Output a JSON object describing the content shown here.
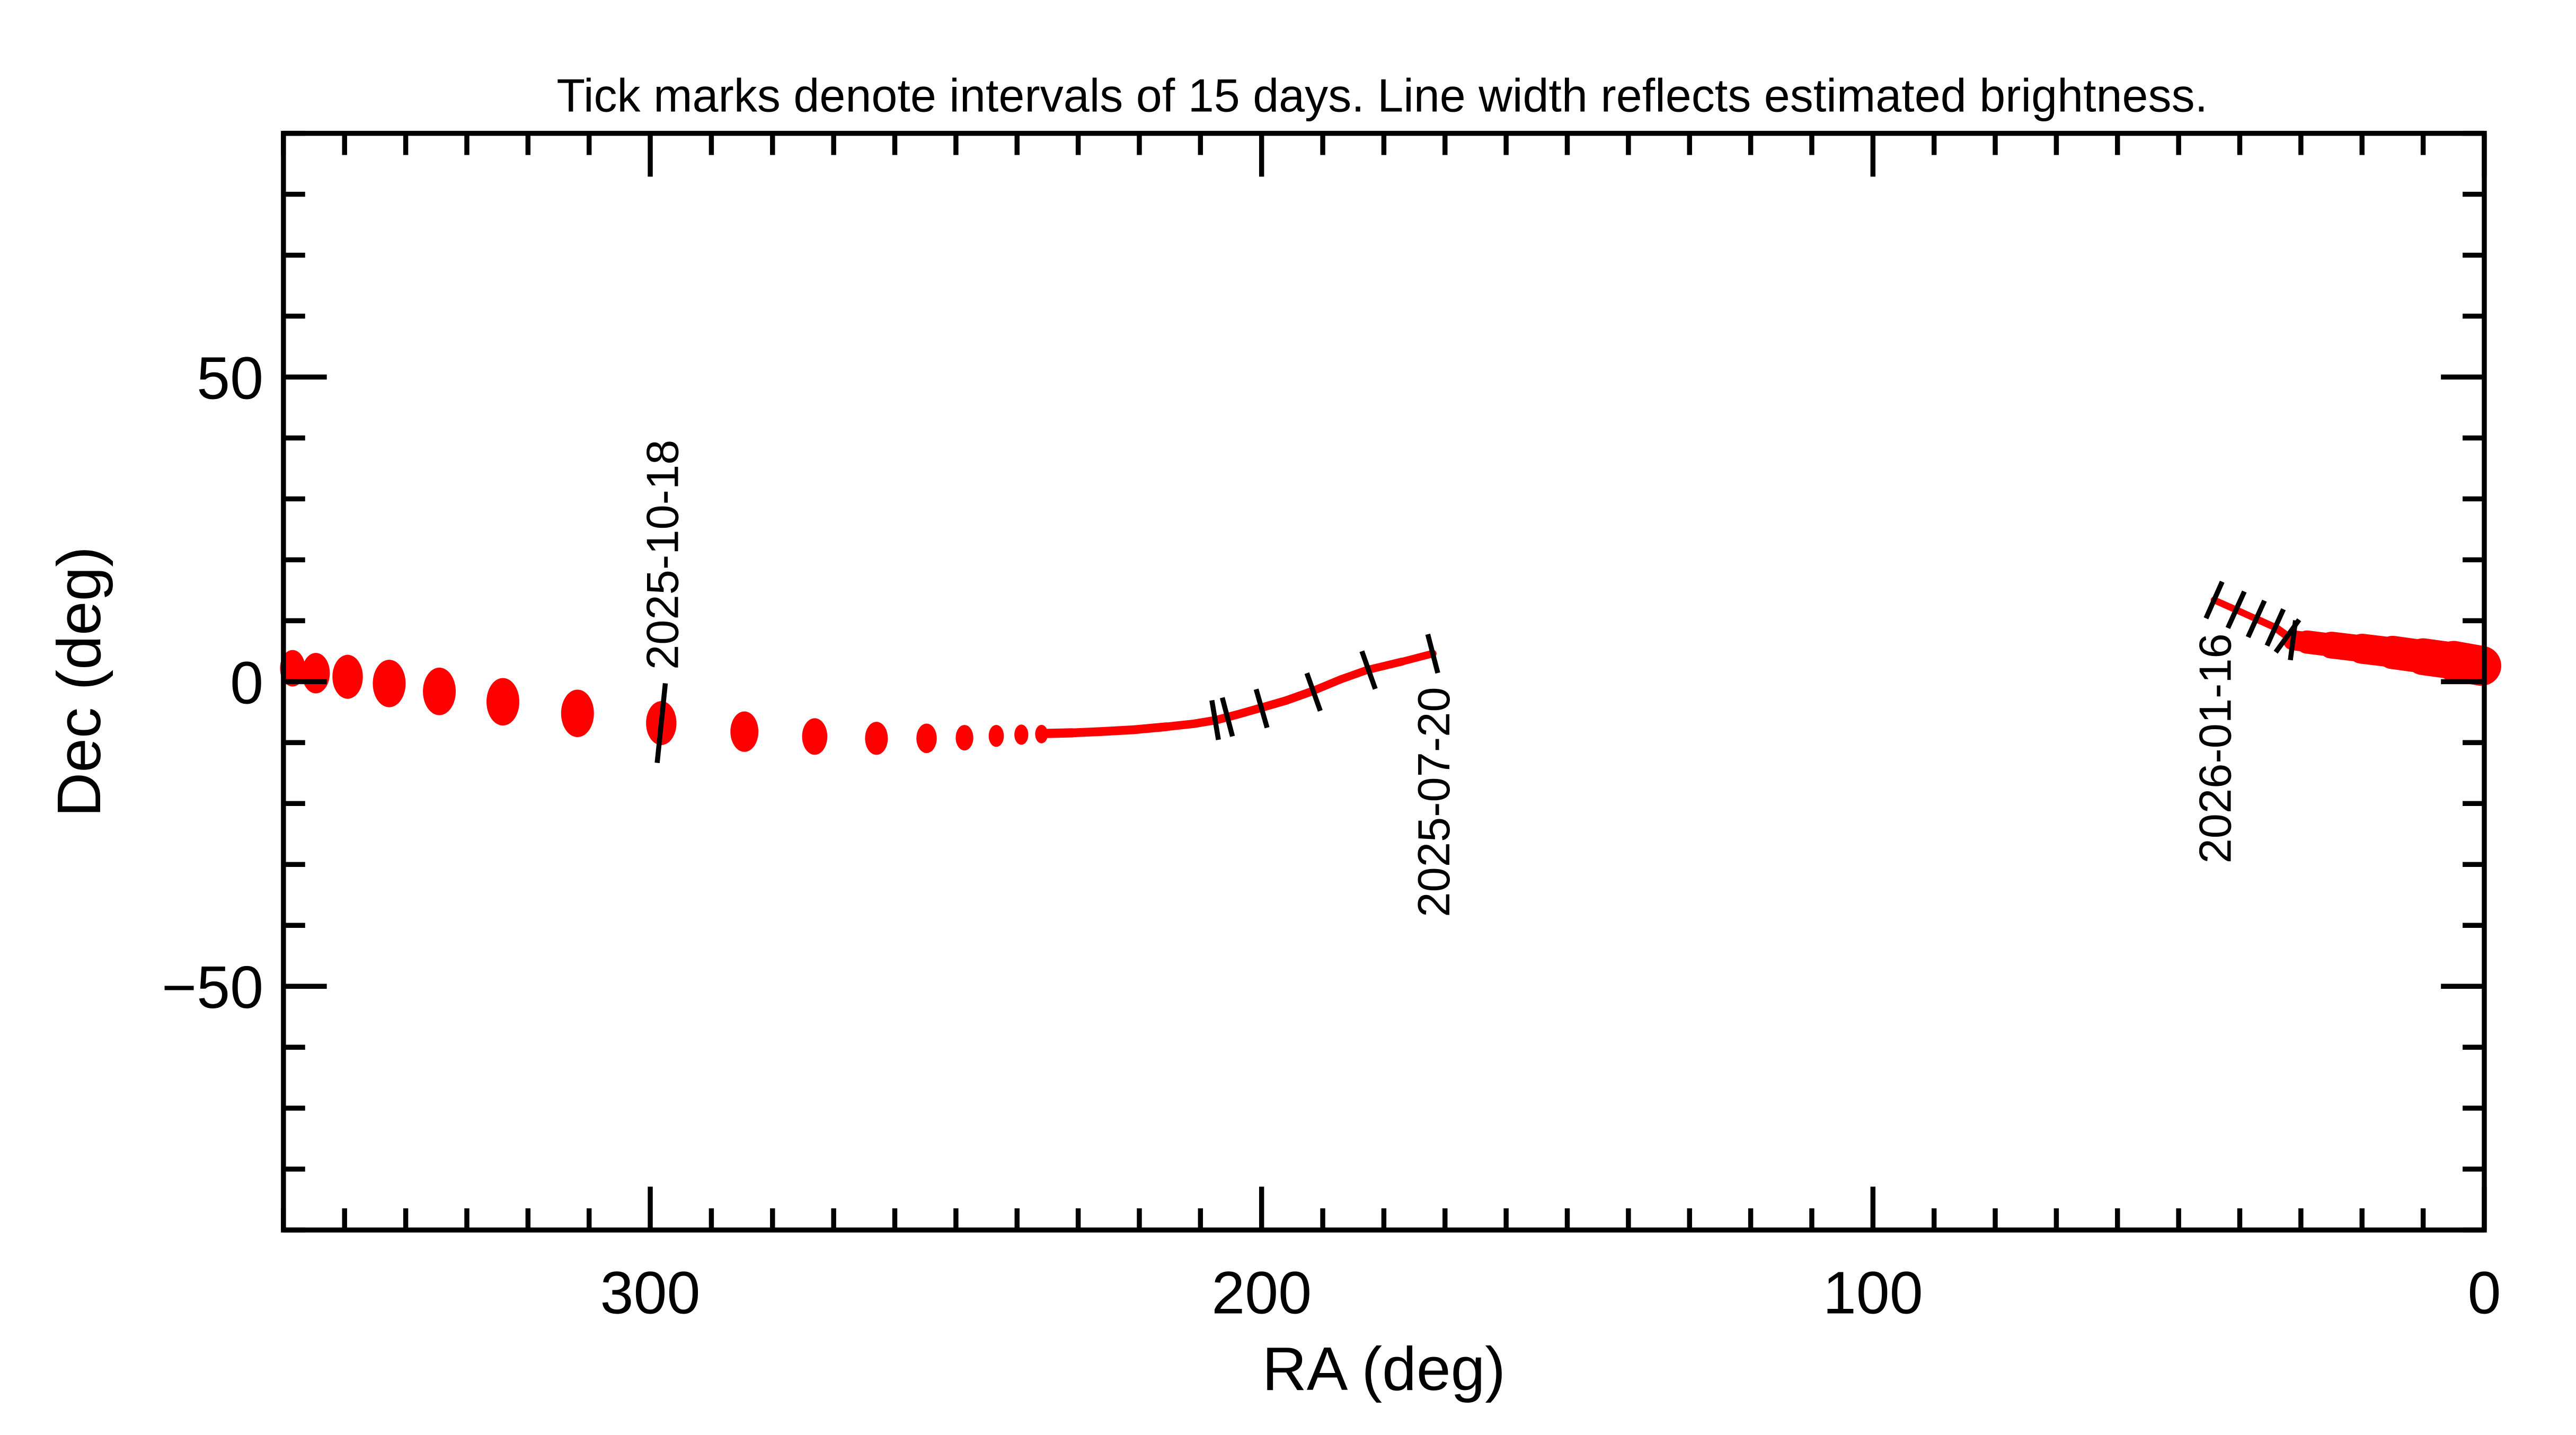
{
  "chart_data": {
    "type": "line",
    "title": "Tick marks denote intervals of 15 days.  Line width reflects estimated brightness.",
    "xlabel": "RA (deg)",
    "ylabel": "Dec (deg)",
    "xlim": [
      360,
      0
    ],
    "ylim": [
      -90,
      90
    ],
    "x_ticks": [
      300,
      200,
      100,
      0
    ],
    "x_tick_labels": [
      "300",
      "200",
      "100",
      "0"
    ],
    "y_ticks": [
      50,
      0,
      -50
    ],
    "y_tick_labels": [
      "50",
      "0",
      "−50"
    ],
    "minor_tick_step": 10,
    "grid": false,
    "track_color": "#ff0000",
    "tick_color": "#000000",
    "series": [
      {
        "style": "line",
        "points": [
          [
            172,
            4.6,
            1.8
          ],
          [
            177,
            3.3,
            1.9
          ],
          [
            182.8,
            1.9,
            2.0
          ],
          [
            187,
            0.4,
            2.0
          ],
          [
            191.8,
            -1.6,
            2.0
          ],
          [
            196,
            -3.1,
            2.1
          ],
          [
            200.5,
            -4.4,
            2.1
          ],
          [
            204,
            -5.4,
            2.1
          ],
          [
            207.4,
            -6.3,
            2.1
          ],
          [
            211,
            -6.9,
            2.1
          ],
          [
            215.6,
            -7.4,
            2.1
          ],
          [
            221,
            -7.9,
            2.2
          ],
          [
            226.5,
            -8.2,
            2.2
          ],
          [
            231,
            -8.4,
            2.2
          ],
          [
            235,
            -8.5,
            2.3
          ]
        ]
      },
      {
        "style": "dots",
        "points": [
          [
            236,
            -8.6,
            4.2
          ],
          [
            239.3,
            -8.7,
            4.6
          ],
          [
            243.4,
            -8.9,
            5.0
          ],
          [
            248.6,
            -9.2,
            5.8
          ],
          [
            254.8,
            -9.3,
            6.7
          ],
          [
            263.0,
            -9.3,
            7.5
          ],
          [
            273.1,
            -9.0,
            8.3
          ],
          [
            284.6,
            -8.2,
            9.2
          ],
          [
            298.2,
            -6.8,
            10.0
          ],
          [
            311.9,
            -5.2,
            10.8
          ],
          [
            324.1,
            -3.3,
            10.8
          ],
          [
            334.5,
            -1.6,
            10.8
          ],
          [
            342.7,
            -0.3,
            10.8
          ],
          [
            349.5,
            0.8,
            10.0
          ],
          [
            354.7,
            1.4,
            9.2
          ],
          [
            358.5,
            2.2,
            8.3
          ]
        ]
      },
      {
        "style": "line",
        "points": [
          [
            0.5,
            2.6,
            10.0
          ],
          [
            5,
            3.4,
            9.2
          ],
          [
            10,
            4.1,
            8.3
          ],
          [
            15,
            4.8,
            7.5
          ],
          [
            20,
            5.4,
            6.7
          ],
          [
            25,
            6.0,
            5.8
          ],
          [
            29,
            6.5,
            5.0
          ],
          [
            31.3,
            6.8,
            2.0
          ],
          [
            34.2,
            8.9,
            1.8
          ],
          [
            37.3,
            10.3,
            1.7
          ],
          [
            40.6,
            11.8,
            1.7
          ],
          [
            44.2,
            13.4,
            1.7
          ]
        ]
      }
    ],
    "interval_ticks": [
      {
        "ra": 172,
        "dec": 4.6,
        "label": "2025-07-20",
        "label_side": "below"
      },
      {
        "ra": 182.5,
        "dec": 1.9,
        "label": ""
      },
      {
        "ra": 191.5,
        "dec": -1.7,
        "label": ""
      },
      {
        "ra": 200,
        "dec": -4.4,
        "label": ""
      },
      {
        "ra": 205.6,
        "dec": -5.8,
        "label": ""
      },
      {
        "ra": 207.6,
        "dec": -6.3,
        "label": ""
      },
      {
        "ra": 298.2,
        "dec": -6.8,
        "label": "2025-10-18",
        "label_side": "above"
      },
      {
        "ra": 44.2,
        "dec": 13.4,
        "label": "2026-01-16",
        "label_side": "below"
      },
      {
        "ra": 40.6,
        "dec": 11.8,
        "label": ""
      },
      {
        "ra": 37.3,
        "dec": 10.3,
        "label": ""
      },
      {
        "ra": 34.2,
        "dec": 8.9,
        "label": ""
      },
      {
        "ra": 32.2,
        "dec": 7.5,
        "label": ""
      },
      {
        "ra": 31.3,
        "dec": 6.8,
        "label": ""
      }
    ]
  }
}
